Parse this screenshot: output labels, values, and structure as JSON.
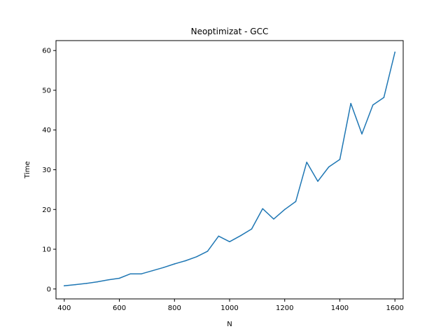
{
  "chart_data": {
    "type": "line",
    "title": "Neoptimizat - GCC",
    "xlabel": "N",
    "ylabel": "Time",
    "xlim": [
      370,
      1630
    ],
    "ylim": [
      -2.5,
      62.5
    ],
    "x_ticks": [
      400,
      600,
      800,
      1000,
      1200,
      1400,
      1600
    ],
    "y_ticks": [
      0,
      10,
      20,
      30,
      40,
      50,
      60
    ],
    "grid": false,
    "color": "#1f77b4",
    "series": [
      {
        "x": [
          400,
          440,
          480,
          520,
          560,
          600,
          640,
          680,
          720,
          760,
          800,
          840,
          880,
          920,
          960,
          1000,
          1040,
          1080,
          1120,
          1160,
          1200,
          1240,
          1280,
          1320,
          1360,
          1400,
          1440,
          1480,
          1520,
          1560,
          1600
        ],
        "y": [
          0.8,
          1.1,
          1.4,
          1.8,
          2.3,
          2.7,
          3.8,
          3.8,
          4.6,
          5.4,
          6.3,
          7.1,
          8.1,
          9.5,
          13.3,
          11.9,
          13.4,
          15.1,
          20.2,
          17.6,
          20.0,
          22.0,
          31.9,
          27.1,
          30.7,
          32.6,
          46.7,
          39.0,
          46.3,
          48.2,
          59.6
        ]
      }
    ]
  }
}
